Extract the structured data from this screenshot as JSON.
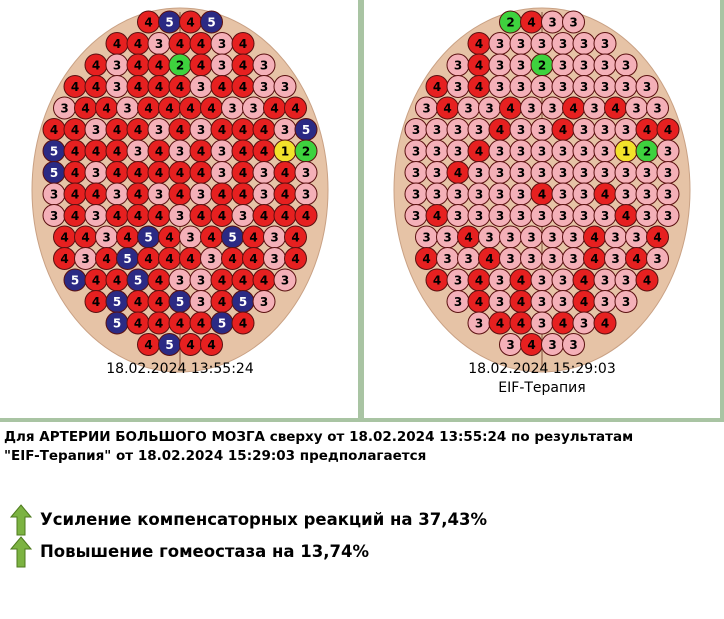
{
  "panels": [
    {
      "date": "18.02.2024 13:55:24",
      "markers": [
        [
          4,
          5,
          4,
          5
        ],
        [
          4,
          4,
          3,
          4,
          4,
          3,
          4
        ],
        [
          4,
          3,
          4,
          4,
          2,
          4,
          3,
          4,
          3
        ],
        [
          4,
          4,
          3,
          4,
          4,
          4,
          3,
          4,
          4,
          3,
          3
        ],
        [
          3,
          4,
          4,
          3,
          4,
          4,
          4,
          4,
          3,
          3,
          4,
          4
        ],
        [
          4,
          4,
          3,
          4,
          4,
          3,
          4,
          3,
          4,
          4,
          4,
          3,
          5
        ],
        [
          5,
          4,
          4,
          4,
          3,
          4,
          3,
          4,
          3,
          4,
          4,
          1,
          2
        ],
        [
          5,
          4,
          3,
          4,
          4,
          4,
          4,
          4,
          3,
          4,
          3,
          4,
          3
        ],
        [
          3,
          4,
          4,
          3,
          4,
          3,
          4,
          3,
          4,
          4,
          3,
          4,
          3
        ],
        [
          3,
          4,
          3,
          4,
          4,
          4,
          3,
          4,
          4,
          3,
          4,
          4,
          4
        ],
        [
          4,
          4,
          3,
          4,
          5,
          4,
          3,
          4,
          5,
          4,
          3,
          4
        ],
        [
          4,
          3,
          4,
          5,
          4,
          4,
          4,
          3,
          4,
          4,
          3,
          4
        ],
        [
          5,
          4,
          4,
          5,
          4,
          3,
          3,
          4,
          4,
          4,
          3
        ],
        [
          4,
          5,
          4,
          4,
          5,
          3,
          4,
          5,
          3
        ],
        [
          5,
          4,
          4,
          4,
          4,
          5,
          4
        ],
        [
          4,
          5,
          4,
          4
        ]
      ]
    },
    {
      "date": "18.02.2024 15:29:03",
      "label": "EIF-Терапия",
      "markers": [
        [
          2,
          4,
          3,
          3
        ],
        [
          4,
          3,
          3,
          3,
          3,
          3,
          3
        ],
        [
          3,
          4,
          3,
          3,
          2,
          3,
          3,
          3,
          3
        ],
        [
          4,
          3,
          4,
          3,
          3,
          3,
          3,
          3,
          3,
          3,
          3
        ],
        [
          3,
          4,
          3,
          3,
          4,
          3,
          3,
          4,
          3,
          4,
          3,
          3
        ],
        [
          3,
          3,
          3,
          3,
          4,
          3,
          3,
          4,
          3,
          3,
          3,
          4,
          4
        ],
        [
          3,
          3,
          3,
          4,
          3,
          3,
          3,
          3,
          3,
          3,
          1,
          2,
          3
        ],
        [
          3,
          3,
          4,
          3,
          3,
          3,
          3,
          3,
          3,
          3,
          3,
          3,
          3
        ],
        [
          3,
          3,
          3,
          3,
          3,
          3,
          4,
          3,
          3,
          4,
          3,
          3,
          3
        ],
        [
          3,
          4,
          3,
          3,
          3,
          3,
          3,
          3,
          3,
          3,
          4,
          3,
          3
        ],
        [
          3,
          3,
          4,
          3,
          3,
          3,
          3,
          3,
          4,
          3,
          3,
          4
        ],
        [
          4,
          3,
          3,
          4,
          3,
          3,
          3,
          3,
          4,
          3,
          4,
          3
        ],
        [
          4,
          3,
          4,
          3,
          4,
          3,
          3,
          4,
          3,
          3,
          4
        ],
        [
          3,
          4,
          3,
          4,
          3,
          3,
          4,
          3,
          3
        ],
        [
          3,
          4,
          4,
          3,
          4,
          3,
          4
        ],
        [
          3,
          4,
          3,
          3
        ]
      ]
    }
  ],
  "summary": {
    "lines": [
      "Для АРТЕРИИ БОЛЬШОГО МОЗГА сверху от 18.02.2024 13:55:24 по результатам",
      "\"EIF-Терапия\" от 18.02.2024 15:29:03 предполагается"
    ],
    "results": [
      "Усиление компенсаторных реакций на 37,43%",
      "Повышение гомеостаза на 13,74%"
    ]
  }
}
